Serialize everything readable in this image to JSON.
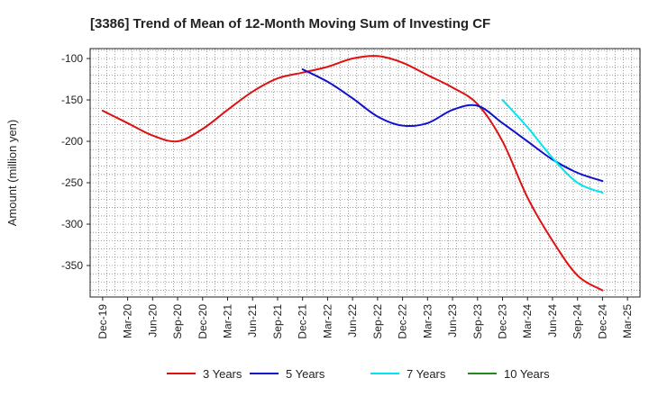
{
  "chart_data": {
    "type": "line",
    "title": "[3386]  Trend of Mean of 12-Month Moving Sum of Investing CF",
    "xlabel": "",
    "ylabel": "Amount (million yen)",
    "ylim": [
      -388,
      -88
    ],
    "yticks": [
      -100,
      -150,
      -200,
      -250,
      -300,
      -350
    ],
    "grid": true,
    "legend_position": "bottom",
    "categories": [
      "Dec-19",
      "Mar-20",
      "Jun-20",
      "Sep-20",
      "Dec-20",
      "Mar-21",
      "Jun-21",
      "Sep-21",
      "Dec-21",
      "Mar-22",
      "Jun-22",
      "Sep-22",
      "Dec-22",
      "Mar-23",
      "Jun-23",
      "Sep-23",
      "Dec-23",
      "Mar-24",
      "Jun-24",
      "Sep-24",
      "Dec-24",
      "Mar-25"
    ],
    "series": [
      {
        "name": "3 Years",
        "color": "#dd1111",
        "values": [
          -163,
          -178,
          -193,
          -200,
          -185,
          -162,
          -140,
          -124,
          -117,
          -110,
          -100,
          -97,
          -105,
          -120,
          -135,
          -155,
          -200,
          -268,
          -320,
          -362,
          -380,
          null
        ]
      },
      {
        "name": "5 Years",
        "color": "#1111cc",
        "values": [
          null,
          null,
          null,
          null,
          null,
          null,
          null,
          null,
          -113,
          -128,
          -148,
          -170,
          -181,
          -178,
          -162,
          -157,
          -178,
          -200,
          -222,
          -238,
          -248,
          null
        ]
      },
      {
        "name": "7 Years",
        "color": "#00e5ee",
        "values": [
          null,
          null,
          null,
          null,
          null,
          null,
          null,
          null,
          null,
          null,
          null,
          null,
          null,
          null,
          null,
          null,
          -150,
          -183,
          -220,
          -250,
          -262,
          null
        ]
      },
      {
        "name": "10 Years",
        "color": "#228822",
        "values": [
          null,
          null,
          null,
          null,
          null,
          null,
          null,
          null,
          null,
          null,
          null,
          null,
          null,
          null,
          null,
          null,
          null,
          null,
          null,
          null,
          null,
          null
        ]
      }
    ]
  }
}
